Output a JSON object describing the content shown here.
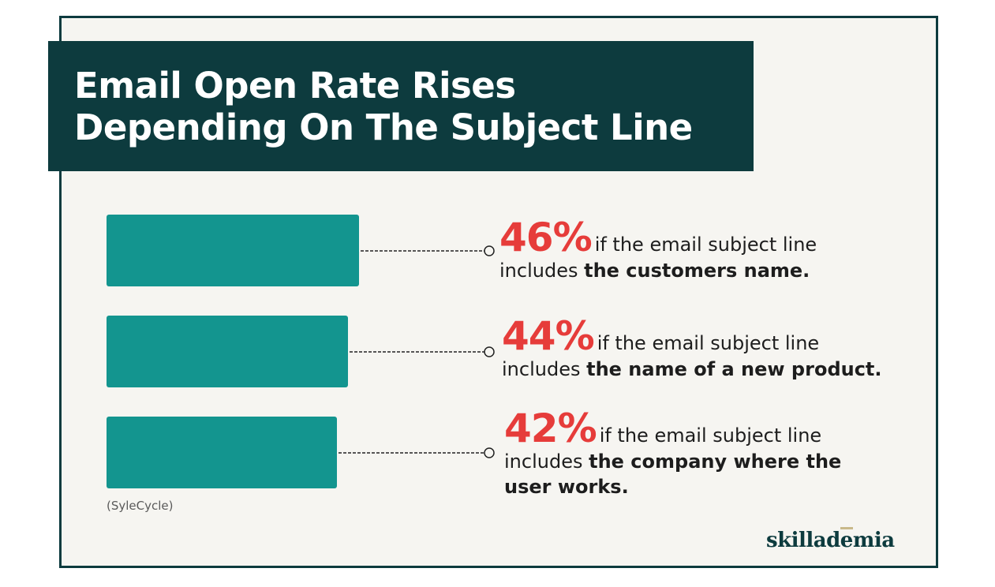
{
  "title": {
    "line1": "Email Open Rate Rises",
    "line2": "Depending On The Subject Line"
  },
  "chart_data": {
    "type": "bar",
    "orientation": "horizontal",
    "unit": "%",
    "categories": [
      "includes the customers name.",
      "includes the name of a new product.",
      "includes the company where the user works."
    ],
    "values": [
      46,
      44,
      42
    ],
    "bar_color": "#13958f",
    "grid": false
  },
  "items": [
    {
      "value_label": "46%",
      "tail": "if the email subject line",
      "prefix": "includes ",
      "bold": "the customers name.",
      "bold2": ""
    },
    {
      "value_label": "44%",
      "tail": "if the email subject line",
      "prefix": "includes ",
      "bold": "the name of a new product.",
      "bold2": ""
    },
    {
      "value_label": "42%",
      "tail": "if the email subject line",
      "prefix": "includes ",
      "bold": "the company where the",
      "bold2": "user works."
    }
  ],
  "source": "(SyleCycle)",
  "logo": "skillademia",
  "colors": {
    "dark_teal": "#0d3b3e",
    "bar_teal": "#13958f",
    "accent_red": "#e63c3a",
    "background": "#f6f5f1"
  }
}
